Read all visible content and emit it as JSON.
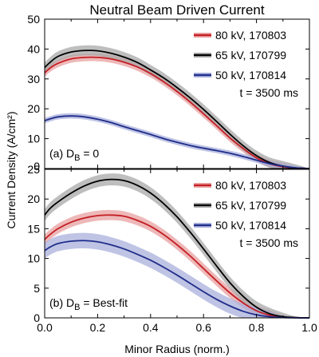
{
  "title": "Neutral Beam Driven Current",
  "xlabel": "Minor Radius (norm.)",
  "ylabel": "Current Density (A/cm²)",
  "time_label": "t = 3500 ms",
  "colors": {
    "red": "#c41e24",
    "black": "#000000",
    "blue": "#1f2d8a",
    "band_red": "#e8a0a0",
    "band_black": "#a8a8a8",
    "band_blue": "#a9b0dc"
  },
  "chart_data": [
    {
      "type": "line",
      "panel_label": "(a) D",
      "panel_label_sub": "B",
      "panel_label_rest": " = 0",
      "xlim": [
        0,
        1
      ],
      "ylim": [
        0,
        50
      ],
      "xticks": [],
      "yticks": [
        0,
        10,
        20,
        30,
        40,
        50
      ],
      "grid": false,
      "legend": "top-right",
      "x": [
        0,
        0.02,
        0.05,
        0.1,
        0.15,
        0.2,
        0.25,
        0.3,
        0.35,
        0.4,
        0.45,
        0.5,
        0.55,
        0.6,
        0.65,
        0.7,
        0.75,
        0.8,
        0.85,
        0.9,
        0.95,
        1.0
      ],
      "series": [
        {
          "name": "80 kV, 170803",
          "color_key": "red",
          "band": 1.3,
          "values": [
            32.0,
            33.6,
            35.2,
            36.7,
            37.2,
            37.2,
            36.7,
            35.6,
            34.0,
            31.8,
            29.0,
            25.8,
            22.2,
            18.3,
            14.3,
            10.2,
            6.7,
            3.6,
            1.6,
            0.6,
            0.15,
            0.0
          ]
        },
        {
          "name": "65 kV, 170799",
          "color_key": "black",
          "band": 1.7,
          "values": [
            33.8,
            35.5,
            37.5,
            39.0,
            39.5,
            39.4,
            38.6,
            37.3,
            35.5,
            33.0,
            30.3,
            27.1,
            23.6,
            19.8,
            15.7,
            11.5,
            7.6,
            4.3,
            2.0,
            0.8,
            0.2,
            0.0
          ]
        },
        {
          "name": "50 kV, 170814",
          "color_key": "blue",
          "band": 0.9,
          "values": [
            16.0,
            16.6,
            17.3,
            17.6,
            17.3,
            16.5,
            15.4,
            14.0,
            12.7,
            11.4,
            10.0,
            8.8,
            7.7,
            6.8,
            6.0,
            5.1,
            4.0,
            2.8,
            1.6,
            0.8,
            0.2,
            0.0
          ]
        }
      ]
    },
    {
      "type": "line",
      "panel_label": "(b) D",
      "panel_label_sub": "B",
      "panel_label_rest": " = Best-fit",
      "xlim": [
        0,
        1
      ],
      "ylim": [
        0,
        25
      ],
      "xticks": [
        "0.0",
        "0.2",
        "0.4",
        "0.6",
        "0.8",
        "1.0"
      ],
      "yticks": [
        0,
        5,
        10,
        15,
        20,
        25
      ],
      "grid": false,
      "legend": "top-right",
      "x": [
        0,
        0.02,
        0.05,
        0.1,
        0.15,
        0.2,
        0.25,
        0.3,
        0.35,
        0.4,
        0.45,
        0.5,
        0.55,
        0.6,
        0.65,
        0.7,
        0.75,
        0.8,
        0.85,
        0.9,
        0.95,
        1.0
      ],
      "series": [
        {
          "name": "80 kV, 170803",
          "color_key": "red",
          "band": 0.85,
          "values": [
            13.2,
            14.0,
            15.0,
            16.1,
            16.8,
            17.2,
            17.3,
            17.1,
            16.4,
            15.4,
            14.0,
            12.3,
            10.4,
            8.3,
            6.2,
            4.2,
            2.5,
            1.2,
            0.45,
            0.12,
            0.03,
            0.0
          ]
        },
        {
          "name": "65 kV, 170799",
          "color_key": "black",
          "band": 1.0,
          "values": [
            17.3,
            18.4,
            19.5,
            21.0,
            22.2,
            23.0,
            23.3,
            23.1,
            22.3,
            21.0,
            19.2,
            17.0,
            14.4,
            11.6,
            8.7,
            5.9,
            3.6,
            1.8,
            0.7,
            0.2,
            0.05,
            0.0
          ]
        },
        {
          "name": "50 kV, 170814",
          "color_key": "blue",
          "band": 1.3,
          "values": [
            11.3,
            11.9,
            12.5,
            12.9,
            13.0,
            12.8,
            12.3,
            11.6,
            10.7,
            9.7,
            8.5,
            7.2,
            5.8,
            4.4,
            3.1,
            2.0,
            1.1,
            0.5,
            0.2,
            0.05,
            0.01,
            0.0
          ]
        }
      ]
    }
  ]
}
